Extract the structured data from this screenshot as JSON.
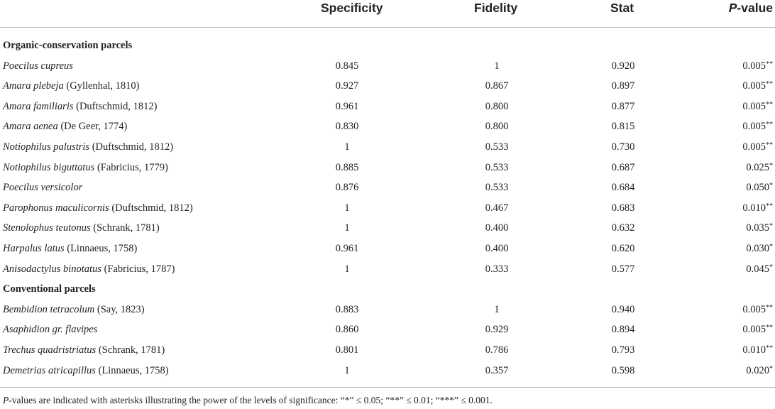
{
  "header": {
    "specificity": "Specificity",
    "fidelity": "Fidelity",
    "stat": "Stat",
    "pvalue_italic": "P",
    "pvalue_rest": "-value"
  },
  "sections": [
    {
      "title": "Organic-conservation parcels",
      "rows": [
        {
          "species": "Poecilus cupreus",
          "author": "",
          "specificity": "0.845",
          "fidelity": "1",
          "stat": "0.920",
          "pvalue": "0.005",
          "stars": "**"
        },
        {
          "species": "Amara plebeja",
          "author": " (Gyllenhal, 1810)",
          "specificity": "0.927",
          "fidelity": "0.867",
          "stat": "0.897",
          "pvalue": "0.005",
          "stars": "**"
        },
        {
          "species": "Amara familiaris",
          "author": " (Duftschmid, 1812)",
          "specificity": "0.961",
          "fidelity": "0.800",
          "stat": "0.877",
          "pvalue": "0.005",
          "stars": "**"
        },
        {
          "species": "Amara aenea",
          "author": " (De Geer, 1774)",
          "specificity": "0.830",
          "fidelity": "0.800",
          "stat": "0.815",
          "pvalue": "0.005",
          "stars": "**"
        },
        {
          "species": "Notiophilus palustris",
          "author": " (Duftschmid, 1812)",
          "specificity": "1",
          "fidelity": "0.533",
          "stat": "0.730",
          "pvalue": "0.005",
          "stars": "**"
        },
        {
          "species": "Notiophilus biguttatus",
          "author": " (Fabricius, 1779)",
          "specificity": "0.885",
          "fidelity": "0.533",
          "stat": "0.687",
          "pvalue": "0.025",
          "stars": "*"
        },
        {
          "species": "Poecilus versicolor",
          "author": "",
          "specificity": "0.876",
          "fidelity": "0.533",
          "stat": "0.684",
          "pvalue": "0.050",
          "stars": "*"
        },
        {
          "species": "Parophonus maculicornis",
          "author": " (Duftschmid, 1812)",
          "specificity": "1",
          "fidelity": "0.467",
          "stat": "0.683",
          "pvalue": "0.010",
          "stars": "**"
        },
        {
          "species": "Stenolophus teutonus",
          "author": " (Schrank, 1781)",
          "specificity": "1",
          "fidelity": "0.400",
          "stat": "0.632",
          "pvalue": "0.035",
          "stars": "*"
        },
        {
          "species": "Harpalus latus",
          "author": " (Linnaeus, 1758)",
          "specificity": "0.961",
          "fidelity": "0.400",
          "stat": "0.620",
          "pvalue": "0.030",
          "stars": "*"
        },
        {
          "species": "Anisodactylus binotatus",
          "author": " (Fabricius, 1787)",
          "specificity": "1",
          "fidelity": "0.333",
          "stat": "0.577",
          "pvalue": "0.045",
          "stars": "*"
        }
      ]
    },
    {
      "title": "Conventional parcels",
      "rows": [
        {
          "species": "Bembidion tetracolum",
          "author": " (Say, 1823)",
          "specificity": "0.883",
          "fidelity": "1",
          "stat": "0.940",
          "pvalue": "0.005",
          "stars": "**"
        },
        {
          "species": "Asaphidion gr. flavipes",
          "author": "",
          "specificity": "0.860",
          "fidelity": "0.929",
          "stat": "0.894",
          "pvalue": "0.005",
          "stars": "**"
        },
        {
          "species": "Trechus quadristriatus",
          "author": " (Schrank, 1781)",
          "specificity": "0.801",
          "fidelity": "0.786",
          "stat": "0.793",
          "pvalue": "0.010",
          "stars": "**"
        },
        {
          "species": "Demetrias atricapillus",
          "author": " (Linnaeus, 1758)",
          "specificity": "1",
          "fidelity": "0.357",
          "stat": "0.598",
          "pvalue": "0.020",
          "stars": "*"
        }
      ]
    }
  ],
  "footnote": {
    "italic": "P",
    "text": "-values are indicated with asterisks illustrating the power of the levels of significance: “*” ≤ 0.05; “**” ≤ 0.01; “***” ≤ 0.001."
  }
}
